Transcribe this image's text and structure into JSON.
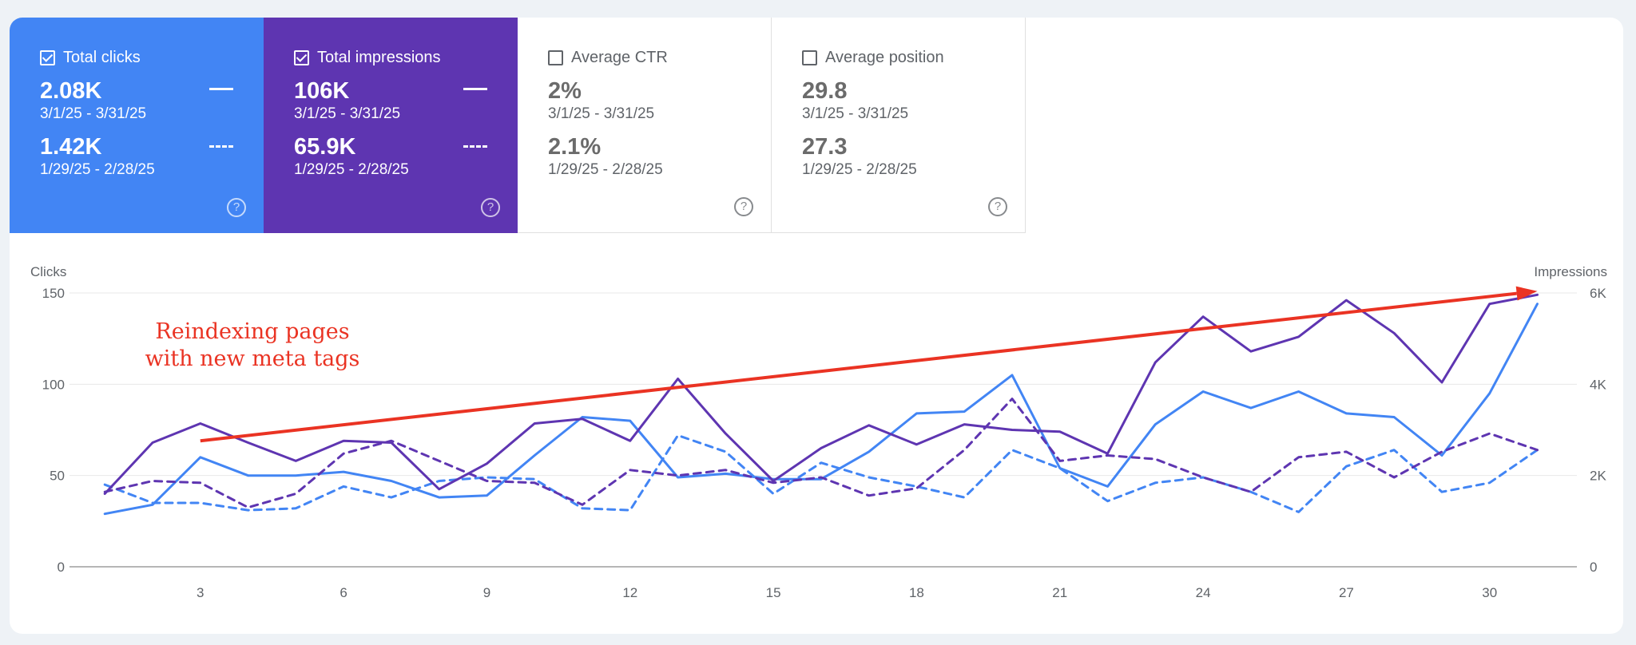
{
  "metrics": [
    {
      "label": "Total clicks",
      "checked": true,
      "value": "2.08K",
      "range": "3/1/25 - 3/31/25",
      "prev_value": "1.42K",
      "prev_range": "1/29/25 - 2/28/25",
      "solid_marker": "—",
      "dash_marker": "---"
    },
    {
      "label": "Total impressions",
      "checked": true,
      "value": "106K",
      "range": "3/1/25 - 3/31/25",
      "prev_value": "65.9K",
      "prev_range": "1/29/25 - 2/28/25",
      "solid_marker": "—",
      "dash_marker": "---"
    },
    {
      "label": "Average CTR",
      "checked": false,
      "value": "2%",
      "range": "3/1/25 - 3/31/25",
      "prev_value": "2.1%",
      "prev_range": "1/29/25 - 2/28/25"
    },
    {
      "label": "Average position",
      "checked": false,
      "value": "29.8",
      "range": "3/1/25 - 3/31/25",
      "prev_value": "27.3",
      "prev_range": "1/29/25 - 2/28/25"
    }
  ],
  "help_glyph": "?",
  "colors": {
    "clicks": "#4285f4",
    "impressions": "#5e35b1",
    "annotation": "#ea3323"
  },
  "chart_data": {
    "type": "line",
    "left_axis_label": "Clicks",
    "right_axis_label": "Impressions",
    "left_ylim": [
      0,
      150
    ],
    "left_ticks": [
      "0",
      "50",
      "100",
      "150"
    ],
    "right_ylim": [
      0,
      6000
    ],
    "right_ticks": [
      "0",
      "2K",
      "4K",
      "6K"
    ],
    "x_ticks": [
      3,
      6,
      9,
      12,
      15,
      18,
      21,
      24,
      27,
      30
    ],
    "x_range": [
      1,
      31
    ],
    "series": [
      {
        "name": "Total clicks",
        "axis": "left",
        "style": "solid",
        "color": "#4285f4",
        "values": [
          29,
          34,
          60,
          50,
          50,
          52,
          47,
          38,
          39,
          61,
          82,
          80,
          49,
          51,
          48,
          48,
          63,
          84,
          85,
          105,
          54,
          44,
          78,
          96,
          87,
          96,
          84,
          82,
          61,
          95,
          144
        ]
      },
      {
        "name": "Total clicks",
        "axis": "left",
        "style": "dashed",
        "color": "#4285f4",
        "values": [
          45,
          35,
          35,
          31,
          32,
          44,
          38,
          47,
          49,
          48,
          32,
          31,
          72,
          63,
          40,
          57,
          49,
          44,
          38,
          64,
          54,
          36,
          46,
          49,
          41,
          30,
          55,
          64,
          41,
          46,
          64
        ]
      },
      {
        "name": "Total impressions",
        "axis": "right",
        "style": "solid",
        "color": "#5e35b1",
        "values": [
          1600,
          2720,
          3140,
          2720,
          2320,
          2760,
          2720,
          1700,
          2260,
          3140,
          3240,
          2760,
          4120,
          2920,
          1880,
          2600,
          3100,
          2680,
          3120,
          3000,
          2960,
          2480,
          4480,
          5480,
          4720,
          5040,
          5840,
          5120,
          4040,
          5760,
          5960
        ]
      },
      {
        "name": "Total impressions",
        "axis": "right",
        "style": "dashed",
        "color": "#5e35b1",
        "values": [
          1640,
          1880,
          1840,
          1300,
          1600,
          2480,
          2760,
          2320,
          1880,
          1840,
          1360,
          2120,
          2000,
          2120,
          1840,
          1960,
          1560,
          1720,
          2560,
          3680,
          2320,
          2440,
          2360,
          1960,
          1640,
          2400,
          2520,
          1960,
          2520,
          2920,
          2560
        ]
      }
    ],
    "annotation": {
      "text_lines": [
        "Reindexing pages",
        "with new meta tags"
      ],
      "arrow_from": {
        "x": 3,
        "y_left": 69
      },
      "arrow_to": {
        "x": 31,
        "y_left": 151
      }
    }
  }
}
